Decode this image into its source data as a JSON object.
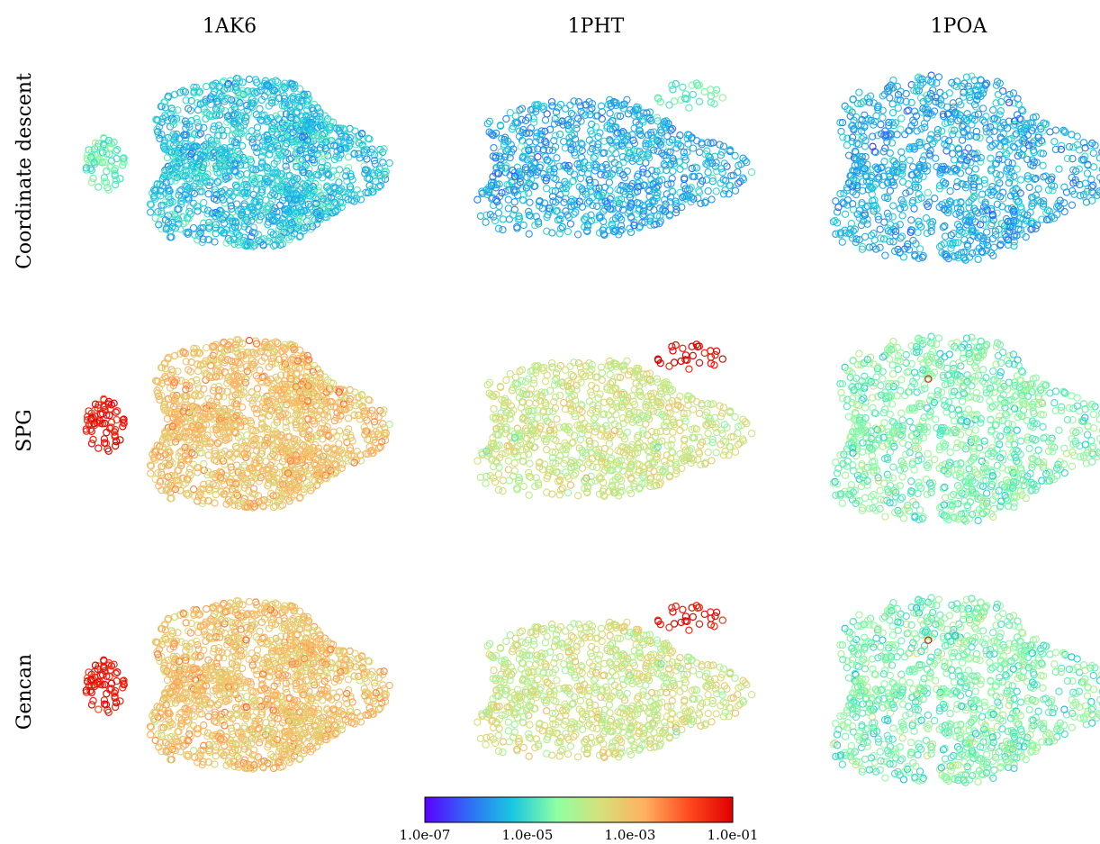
{
  "figure": {
    "columns": [
      "1AK6",
      "1PHT",
      "1POA"
    ],
    "rows": [
      "Coordinate descent",
      "SPG",
      "Gencan"
    ]
  },
  "chart_data": {
    "type": "scatter",
    "description_of_marks": "hollow circle markers for each atom of a protein structure, colored by a per-atom value on a logarithmic rainbow color scale",
    "colorbar": {
      "scale": "log",
      "range": [
        1e-07,
        0.1
      ],
      "ticks": [
        "1.0e-07",
        "1.0e-05",
        "1.0e-03",
        "1.0e-01"
      ],
      "colormap": [
        "#5a00ff",
        "#2f6df5",
        "#19c8e0",
        "#8effa3",
        "#d6e07a",
        "#ffb060",
        "#ff4a1f",
        "#e00000"
      ]
    },
    "panels": [
      {
        "row": "Coordinate descent",
        "column": "1AK6",
        "typical_value": 5e-06,
        "cluster_value": 2e-05,
        "cluster_side": "left",
        "points": 1500
      },
      {
        "row": "Coordinate descent",
        "column": "1PHT",
        "typical_value": 3e-06,
        "cluster_value": 2e-05,
        "cluster_side": "top-right",
        "points": 900
      },
      {
        "row": "Coordinate descent",
        "column": "1POA",
        "typical_value": 3e-06,
        "cluster_value": null,
        "cluster_side": null,
        "points": 1100
      },
      {
        "row": "SPG",
        "column": "1AK6",
        "typical_value": 0.001,
        "cluster_value": 0.05,
        "cluster_side": "left",
        "points": 1500
      },
      {
        "row": "SPG",
        "column": "1PHT",
        "typical_value": 0.0002,
        "cluster_value": 0.08,
        "cluster_side": "left",
        "points": 900
      },
      {
        "row": "SPG",
        "column": "1POA",
        "typical_value": 3e-05,
        "cluster_value": 0.05,
        "cluster_side": "top-left",
        "points": 1100
      },
      {
        "row": "Gencan",
        "column": "1AK6",
        "typical_value": 0.001,
        "cluster_value": 0.05,
        "cluster_side": "left",
        "points": 1500
      },
      {
        "row": "Gencan",
        "column": "1PHT",
        "typical_value": 0.0002,
        "cluster_value": 0.08,
        "cluster_side": "left",
        "points": 900
      },
      {
        "row": "Gencan",
        "column": "1POA",
        "typical_value": 3e-05,
        "cluster_value": 0.05,
        "cluster_side": "top-left",
        "points": 1100
      }
    ]
  }
}
